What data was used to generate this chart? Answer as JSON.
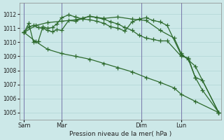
{
  "background_color": "#cce8e8",
  "grid_color": "#b0d4d4",
  "line_color": "#2d6a2d",
  "vline_color": "#7777aa",
  "title": "Pression niveau de la mer( hPa )",
  "xtick_labels": [
    "Sam",
    "Mar",
    "Dim",
    "Lun"
  ],
  "xtick_positions": [
    0,
    16,
    50,
    67
  ],
  "xlim": [
    -2,
    84
  ],
  "ylim": [
    1004.5,
    1012.8
  ],
  "yticks": [
    1005,
    1006,
    1007,
    1008,
    1009,
    1010,
    1011,
    1012
  ],
  "series1_x": [
    0,
    2,
    4,
    6,
    8,
    10,
    12,
    14,
    16,
    19,
    22,
    25,
    28,
    31,
    34,
    37,
    40,
    43,
    46,
    49,
    52,
    55,
    58,
    61,
    67,
    70,
    73,
    76,
    83
  ],
  "series1_y": [
    1010.7,
    1011.1,
    1011.2,
    1011.05,
    1011.0,
    1010.85,
    1010.75,
    1010.9,
    1010.85,
    1011.55,
    1011.5,
    1011.7,
    1011.85,
    1011.75,
    1011.65,
    1011.45,
    1011.3,
    1011.05,
    1010.85,
    1010.5,
    1010.3,
    1010.2,
    1010.1,
    1010.1,
    1009.0,
    1008.9,
    1007.5,
    1007.3,
    1005.0
  ],
  "series2_x": [
    0,
    2,
    4,
    6,
    8,
    10,
    12,
    14,
    16,
    19,
    22,
    25,
    28,
    31,
    34,
    37,
    40,
    43,
    46,
    49,
    52,
    55,
    58,
    61,
    67,
    70,
    73,
    76,
    83
  ],
  "series2_y": [
    1010.7,
    1011.35,
    1010.0,
    1010.05,
    1011.1,
    1011.0,
    1011.05,
    1011.3,
    1011.75,
    1011.95,
    1011.8,
    1011.65,
    1011.6,
    1011.5,
    1011.35,
    1011.1,
    1011.0,
    1010.8,
    1011.45,
    1011.65,
    1011.75,
    1011.55,
    1011.45,
    1011.2,
    1009.1,
    1008.8,
    1007.5,
    1006.6,
    1005.0
  ],
  "series3_x": [
    0,
    5,
    10,
    16,
    22,
    28,
    34,
    40,
    46,
    52,
    58,
    64,
    67,
    73,
    83
  ],
  "series3_y": [
    1010.7,
    1011.2,
    1011.4,
    1011.5,
    1011.6,
    1011.85,
    1011.7,
    1011.8,
    1011.65,
    1011.55,
    1010.85,
    1010.3,
    1009.2,
    1008.3,
    1005.0
  ],
  "series4_x": [
    0,
    5,
    10,
    16,
    22,
    28,
    34,
    40,
    46,
    52,
    58,
    64,
    67,
    73,
    83
  ],
  "series4_y": [
    1010.7,
    1010.05,
    1009.5,
    1009.2,
    1009.0,
    1008.8,
    1008.5,
    1008.2,
    1007.9,
    1007.5,
    1007.15,
    1006.75,
    1006.3,
    1005.8,
    1005.0
  ]
}
